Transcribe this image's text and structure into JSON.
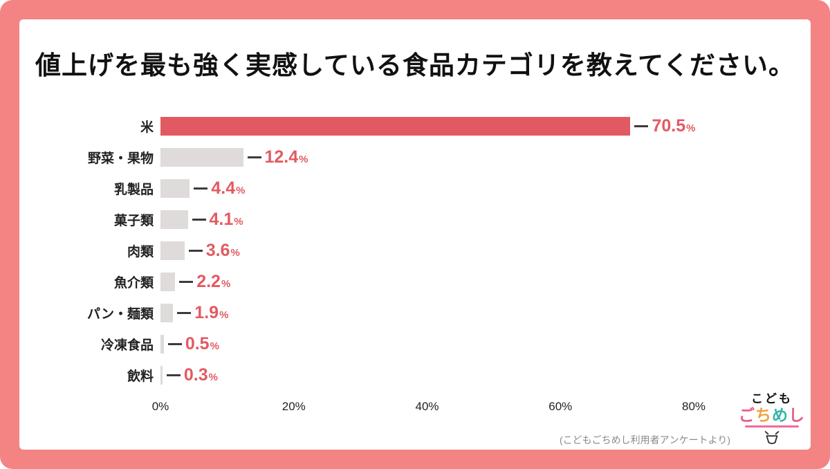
{
  "frame": {
    "border_color": "#F48484",
    "card_color": "#FFFFFF"
  },
  "title": "値上げを最も強く実感している食品カテゴリを教えてください。",
  "chart_data": {
    "type": "bar",
    "orientation": "horizontal",
    "categories": [
      "米",
      "野菜・果物",
      "乳製品",
      "菓子類",
      "肉類",
      "魚介類",
      "パン・麺類",
      "冷凍食品",
      "飲料"
    ],
    "values": [
      70.5,
      12.4,
      4.4,
      4.1,
      3.6,
      2.2,
      1.9,
      0.5,
      0.3
    ],
    "value_labels": [
      "70.5",
      "12.4",
      "4.4",
      "4.1",
      "3.6",
      "2.2",
      "1.9",
      "0.5",
      "0.3"
    ],
    "unit": "%",
    "x_ticks": [
      "0%",
      "20%",
      "40%",
      "60%",
      "80%"
    ],
    "xlim": [
      0,
      80
    ],
    "grid": false,
    "legend": false,
    "highlight_index": 0,
    "highlight_color": "#E25A61",
    "bar_color": "#DEDBDA",
    "value_color": "#E25A61",
    "dash_color": "#3B3B3B"
  },
  "footnote": "(こどもごちめし利用者アンケートより)",
  "logo": {
    "line1": "こども",
    "line2_chars": [
      "ご",
      "ち",
      "め",
      "し"
    ],
    "line2_colors": [
      "#E85B8A",
      "#F0A13F",
      "#35B5A5",
      "#E85B8A"
    ],
    "underline_color": "#F06B9A"
  }
}
